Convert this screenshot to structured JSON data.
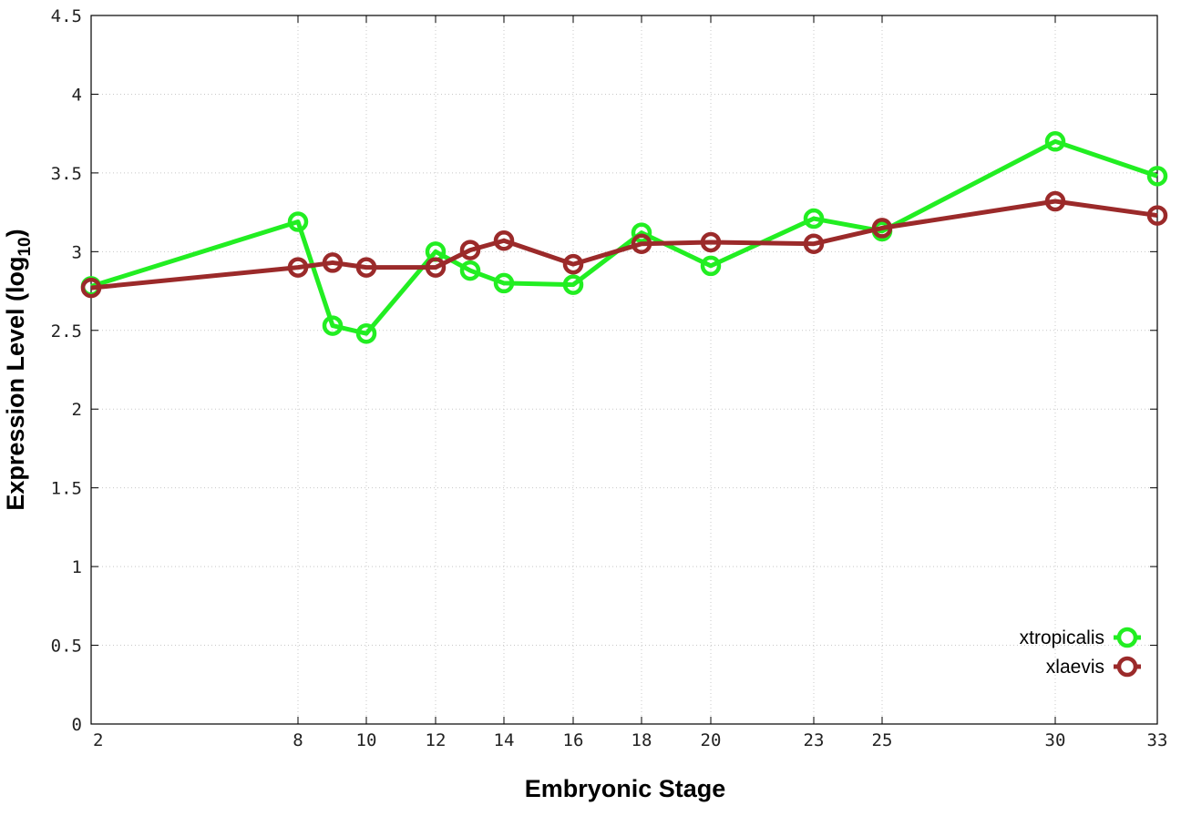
{
  "chart_data": {
    "type": "line",
    "x_categories": [
      "2",
      "8",
      "9",
      "10",
      "12",
      "13",
      "14",
      "16",
      "18",
      "20",
      "23",
      "25",
      "30",
      "33"
    ],
    "x_tick_labels": [
      "2",
      "8",
      "10",
      "12",
      "14",
      "16",
      "18",
      "20",
      "23",
      "25",
      "30",
      "33"
    ],
    "xlabel": "Embryonic Stage",
    "ylabel": {
      "main": "Expression Level (log",
      "subscript": "10",
      "close": ")"
    },
    "ylim": [
      0,
      4.5
    ],
    "y_ticks": [
      0,
      0.5,
      1,
      1.5,
      2,
      2.5,
      3,
      3.5,
      4,
      4.5
    ],
    "y_tick_labels": [
      "0",
      "0.5",
      "1",
      "1.5",
      "2",
      "2.5",
      "3",
      "3.5",
      "4",
      "4.5"
    ],
    "grid": true,
    "legend_position": "bottom-right",
    "series": [
      {
        "name": "xtropicalis",
        "color": "#22ee22",
        "x": [
          2,
          8,
          9,
          10,
          12,
          13,
          14,
          16,
          18,
          20,
          23,
          25,
          30,
          33
        ],
        "values": [
          2.78,
          3.19,
          2.53,
          2.48,
          3.0,
          2.88,
          2.8,
          2.79,
          3.12,
          2.91,
          3.21,
          3.13,
          3.7,
          3.48
        ]
      },
      {
        "name": "xlaevis",
        "color": "#9b2a2a",
        "x": [
          2,
          8,
          9,
          10,
          12,
          13,
          14,
          16,
          18,
          20,
          23,
          25,
          30,
          33
        ],
        "values": [
          2.77,
          2.9,
          2.93,
          2.9,
          2.9,
          3.01,
          3.07,
          2.92,
          3.05,
          3.06,
          3.05,
          3.15,
          3.32,
          3.23
        ]
      }
    ]
  }
}
